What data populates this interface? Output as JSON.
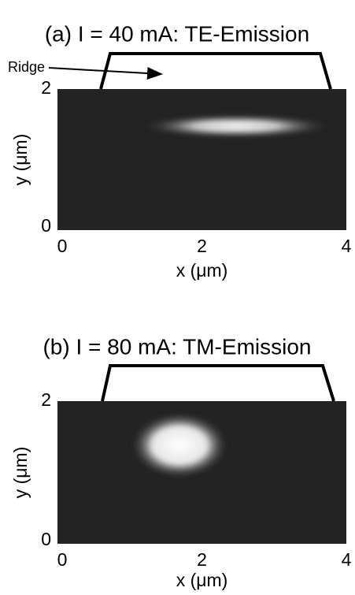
{
  "chart_data": [
    {
      "type": "image",
      "title": "(a) I = 40 mA: TE-Emission",
      "xlabel": "x (μm)",
      "ylabel": "y (μm)",
      "xlim": [
        0,
        4
      ],
      "ylim": [
        0,
        2
      ],
      "xticks": [
        0,
        2,
        4
      ],
      "yticks": [
        0,
        2
      ],
      "annotation": "Ridge"
    },
    {
      "type": "image",
      "title": "(b) I = 80 mA: TM-Emission",
      "xlabel": "x (μm)",
      "ylabel": "y (μm)",
      "xlim": [
        0,
        4
      ],
      "ylim": [
        0,
        2
      ],
      "xticks": [
        0,
        2,
        4
      ],
      "yticks": [
        0,
        2
      ]
    }
  ]
}
